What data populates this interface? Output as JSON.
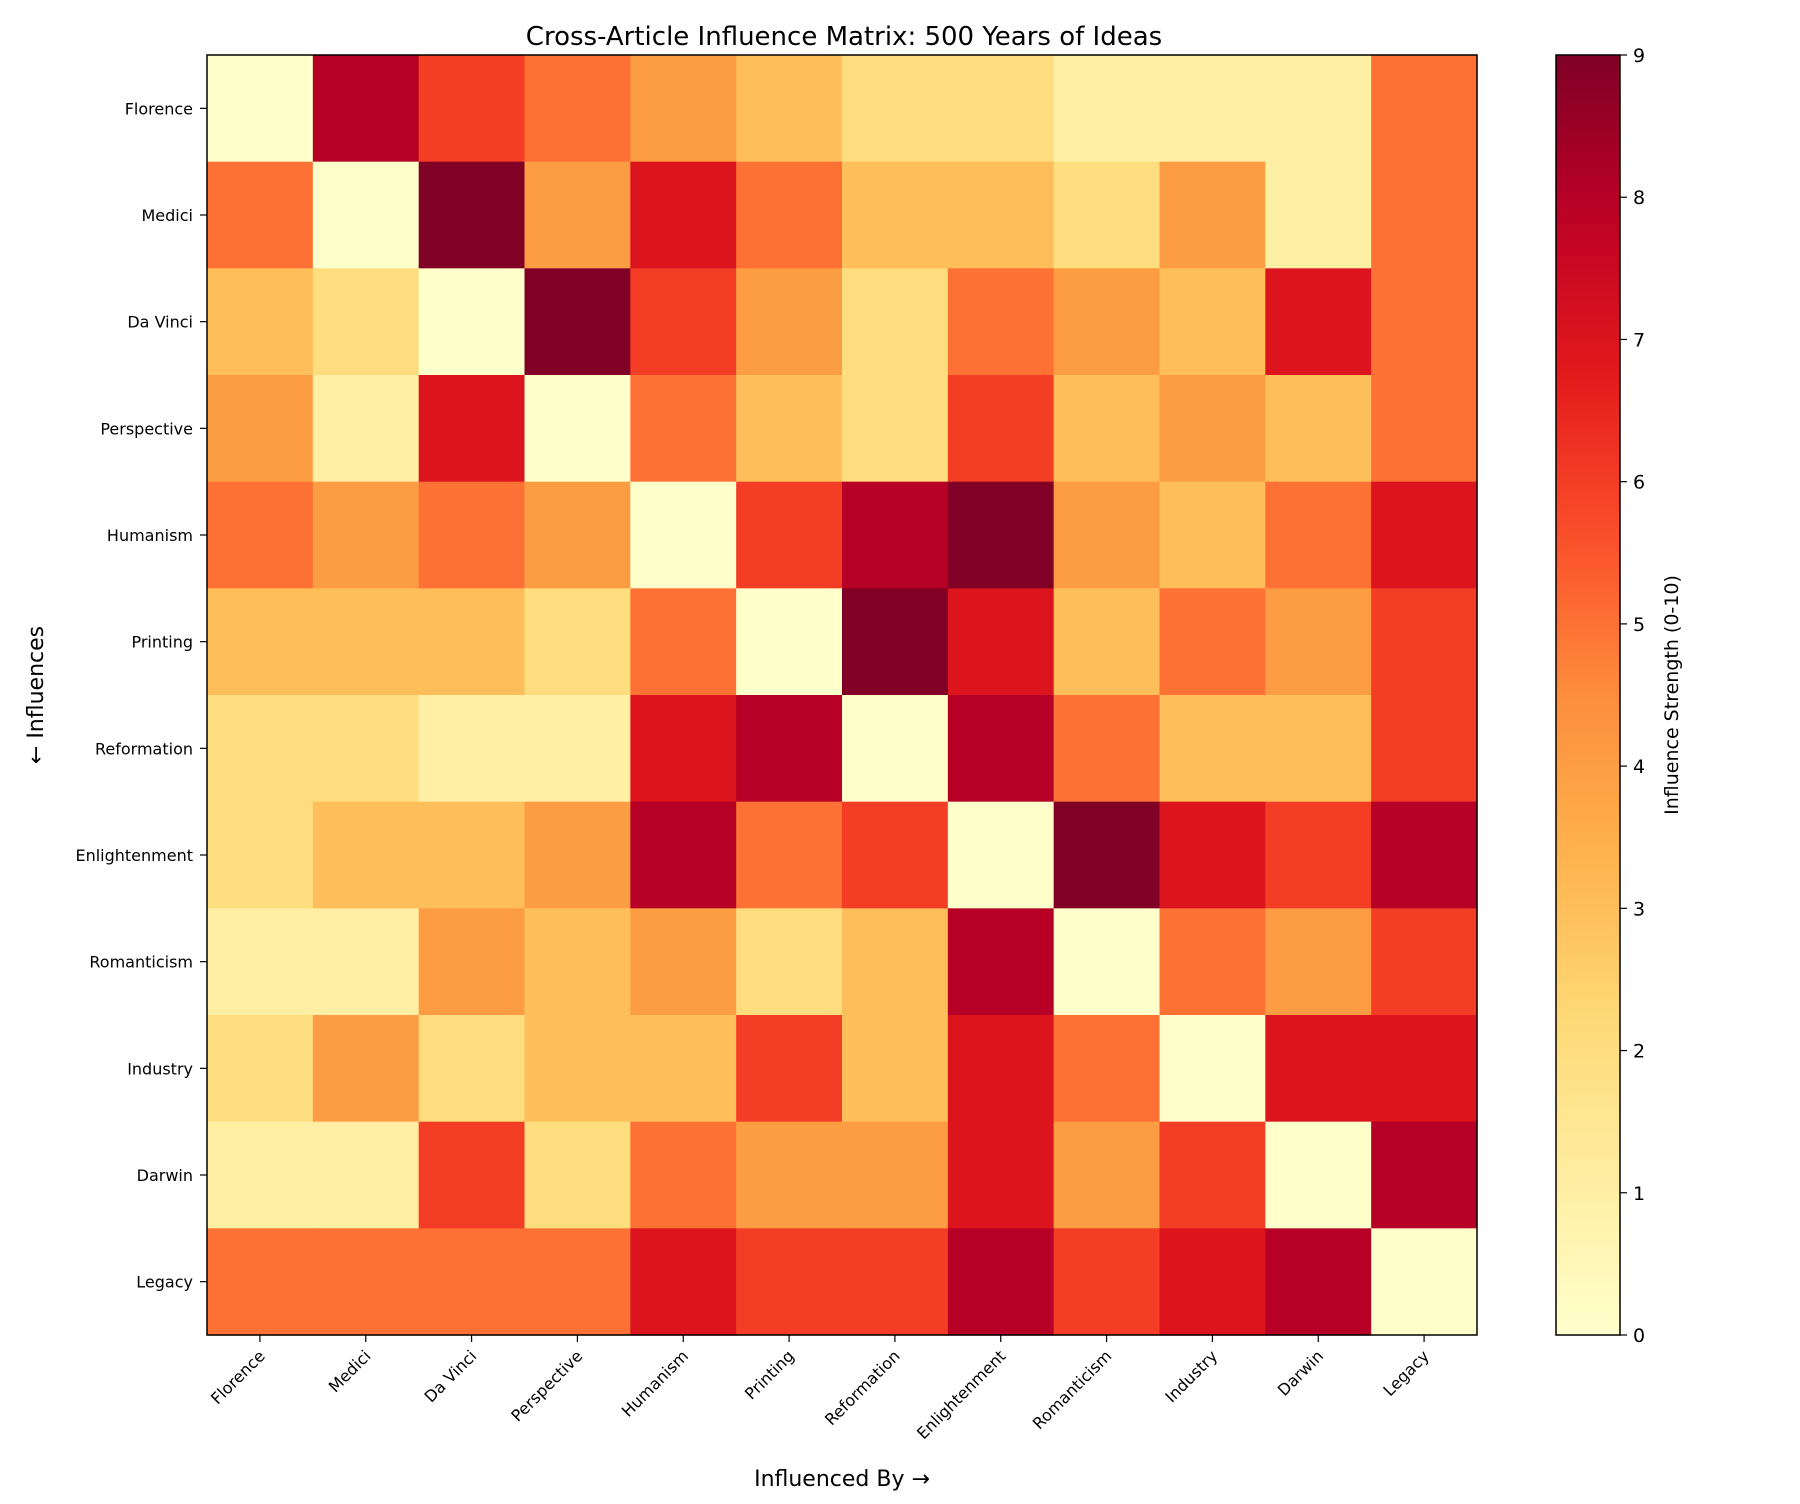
{
  "chart_data": {
    "type": "heatmap",
    "title": "Cross-Article Influence Matrix: 500 Years of Ideas",
    "xlabel": "Influenced By →",
    "ylabel": "← Influences",
    "x_categories": [
      "Florence",
      "Medici",
      "Da Vinci",
      "Perspective",
      "Humanism",
      "Printing",
      "Reformation",
      "Enlightenment",
      "Romanticism",
      "Industry",
      "Darwin",
      "Legacy"
    ],
    "y_categories": [
      "Florence",
      "Medici",
      "Da Vinci",
      "Perspective",
      "Humanism",
      "Printing",
      "Reformation",
      "Enlightenment",
      "Romanticism",
      "Industry",
      "Darwin",
      "Legacy"
    ],
    "values": [
      [
        0,
        8,
        6,
        5,
        4,
        3,
        2,
        2,
        1,
        1,
        1,
        5
      ],
      [
        5,
        0,
        9,
        4,
        7,
        5,
        3,
        3,
        2,
        4,
        1,
        5
      ],
      [
        3,
        2,
        0,
        9,
        6,
        4,
        2,
        5,
        4,
        3,
        7,
        5
      ],
      [
        4,
        1,
        7,
        0,
        5,
        3,
        2,
        6,
        3,
        4,
        3,
        5
      ],
      [
        5,
        4,
        5,
        4,
        0,
        6,
        8,
        9,
        4,
        3,
        5,
        7
      ],
      [
        3,
        3,
        3,
        2,
        5,
        0,
        9,
        7,
        3,
        5,
        4,
        6
      ],
      [
        2,
        2,
        1,
        1,
        7,
        8,
        0,
        8,
        5,
        3,
        3,
        6
      ],
      [
        2,
        3,
        3,
        4,
        8,
        5,
        6,
        0,
        9,
        7,
        6,
        8
      ],
      [
        1,
        1,
        4,
        3,
        4,
        2,
        3,
        8,
        0,
        5,
        4,
        6
      ],
      [
        2,
        4,
        2,
        3,
        3,
        6,
        3,
        7,
        5,
        0,
        7,
        7
      ],
      [
        1,
        1,
        6,
        2,
        5,
        4,
        4,
        7,
        4,
        6,
        0,
        8
      ],
      [
        5,
        5,
        5,
        5,
        7,
        6,
        6,
        8,
        6,
        7,
        8,
        0
      ]
    ],
    "colormap": "YlOrRd",
    "vmin": 0,
    "vmax": 9,
    "colorbar": {
      "label": "Influence Strength (0-10)",
      "ticks": [
        "0",
        "1",
        "2",
        "3",
        "4",
        "5",
        "6",
        "7",
        "8",
        "9"
      ]
    },
    "grid": false
  }
}
